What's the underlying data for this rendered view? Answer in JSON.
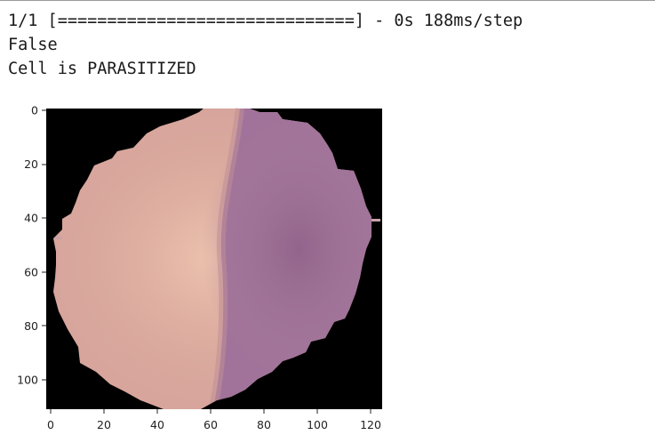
{
  "output": {
    "progress_line": "1/1 [==============================] - 0s 188ms/step",
    "result_line": "False",
    "prediction_line": "Cell is PARASITIZED"
  },
  "chart_data": {
    "type": "heatmap",
    "description_of_content": "",
    "x_ticks": [
      0,
      20,
      40,
      60,
      80,
      100,
      120
    ],
    "y_ticks": [
      0,
      20,
      40,
      60,
      80,
      100
    ],
    "xlim": [
      -0.5,
      124.5
    ],
    "ylim": [
      111.5,
      -0.5
    ],
    "background_color": "#000000",
    "cell_colors": {
      "pale_region": "#dcab9c",
      "stained_region": "#9e6f93",
      "edge": "#caa3ab"
    }
  }
}
